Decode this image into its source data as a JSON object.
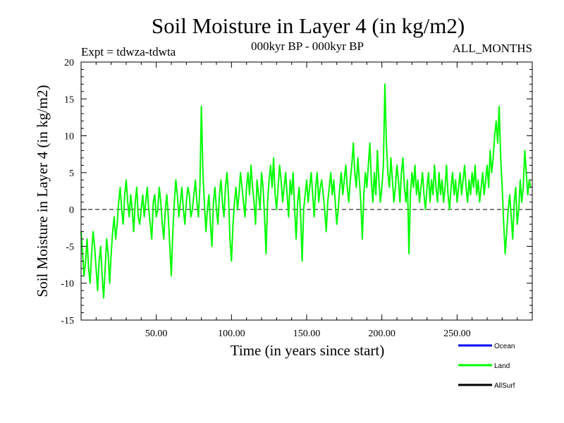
{
  "chart_data": {
    "type": "line",
    "title": "Soil Moisture in Layer 4 (in kg/m2)",
    "subtitle_left": "Expt = tdwza-tdwta",
    "subtitle_center": "000kyr BP - 000kyr BP",
    "subtitle_right": "ALL_MONTHS",
    "xlabel": "Time (in years since start)",
    "ylabel": "Soil Moisture in Layer 4 (in kg/m2)",
    "xlim": [
      0,
      300
    ],
    "ylim": [
      -15,
      20
    ],
    "x_ticks": [
      50,
      100,
      150,
      200,
      250
    ],
    "x_tick_labels": [
      "50.00",
      "100.00",
      "150.00",
      "200.00",
      "250.00"
    ],
    "y_ticks": [
      -15,
      -10,
      -5,
      0,
      5,
      10,
      15,
      20
    ],
    "y_tick_labels": [
      "-15",
      "-10",
      "-5",
      "0",
      "5",
      "10",
      "15",
      "20"
    ],
    "zero_line": {
      "y": 0,
      "style": "dashed"
    },
    "legend_position": "bottom-right",
    "series": [
      {
        "name": "Ocean",
        "color": "#0000ff",
        "values": []
      },
      {
        "name": "Land",
        "color": "#00ff00",
        "x_start": 0,
        "x_step": 1,
        "values": [
          -3,
          -6,
          -9,
          -7,
          -4,
          -8,
          -10,
          -6,
          -3,
          -5,
          -8,
          -11,
          -7,
          -5,
          -9,
          -12,
          -8,
          -4,
          -6,
          -10,
          -6,
          -3,
          -1,
          -4,
          -2,
          1,
          3,
          0,
          -2,
          2,
          4,
          1,
          -1,
          2,
          0,
          -3,
          1,
          3,
          -1,
          -2,
          0,
          2,
          -1,
          1,
          3,
          0,
          -2,
          -4,
          1,
          2,
          -1,
          0,
          3,
          1,
          -2,
          -4,
          0,
          2,
          -1,
          -5,
          -9,
          -3,
          1,
          4,
          2,
          -1,
          1,
          3,
          0,
          -2,
          1,
          3,
          2,
          -1,
          0,
          2,
          4,
          1,
          -1,
          3,
          14,
          5,
          1,
          -3,
          0,
          2,
          -2,
          -5,
          1,
          3,
          0,
          -2,
          2,
          4,
          1,
          -1,
          3,
          5,
          2,
          -4,
          -7,
          -2,
          1,
          3,
          0,
          2,
          5,
          3,
          1,
          -1,
          3,
          5,
          2,
          6,
          3,
          1,
          -2,
          4,
          2,
          0,
          5,
          3,
          -1,
          -6,
          1,
          4,
          6,
          3,
          7,
          2,
          0,
          3,
          6,
          4,
          1,
          3,
          5,
          2,
          -1,
          4,
          2,
          5,
          0,
          -4,
          1,
          3,
          -1,
          -7,
          0,
          2,
          4,
          1,
          3,
          5,
          2,
          -1,
          3,
          5,
          1,
          3,
          4,
          2,
          0,
          -3,
          1,
          3,
          5,
          2,
          4,
          1,
          -2,
          0,
          3,
          5,
          2,
          4,
          6,
          3,
          1,
          4,
          6,
          9,
          5,
          3,
          7,
          4,
          1,
          -4,
          2,
          5,
          3,
          6,
          9,
          4,
          1,
          5,
          2,
          8,
          4,
          1,
          3,
          6,
          17,
          9,
          5,
          3,
          7,
          4,
          1,
          3,
          6,
          4,
          1,
          5,
          7,
          3,
          1,
          4,
          -6,
          2,
          5,
          3,
          6,
          2,
          4,
          1,
          3,
          5,
          2,
          0,
          3,
          5,
          1,
          4,
          2,
          6,
          3,
          1,
          5,
          2,
          4,
          1,
          3,
          6,
          2,
          0,
          3,
          5,
          2,
          4,
          1,
          3,
          5,
          2,
          4,
          6,
          3,
          1,
          4,
          2,
          5,
          3,
          6,
          2,
          4,
          1,
          3,
          5,
          2,
          4,
          6,
          3,
          8,
          5,
          7,
          10,
          12,
          9,
          14,
          7,
          3,
          -2,
          -6,
          -3,
          0,
          2,
          -1,
          -4,
          1,
          3,
          -2,
          0,
          4,
          1,
          3,
          8,
          5,
          2,
          4,
          3
        ]
      },
      {
        "name": "AllSurf",
        "color": "#000000",
        "values": []
      }
    ]
  }
}
